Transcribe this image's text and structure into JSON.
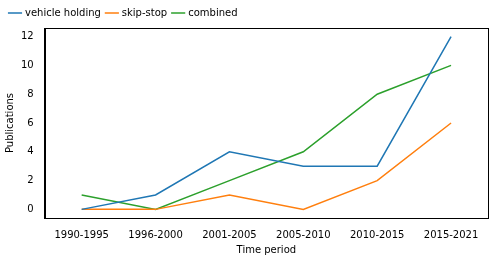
{
  "chart_data": {
    "type": "line",
    "x_label": "Time period",
    "y_label": "Publications",
    "categories": [
      "1990-1995",
      "1996-2000",
      "2001-2005",
      "2005-2010",
      "2010-2015",
      "2015-2021"
    ],
    "series": [
      {
        "name": "vehicle holding",
        "color": "#1f77b4",
        "values": [
          0,
          1,
          4,
          3,
          3,
          12
        ]
      },
      {
        "name": "skip-stop",
        "color": "#ff7f0e",
        "values": [
          0,
          0,
          1,
          0,
          2,
          6
        ]
      },
      {
        "name": "combined",
        "color": "#2ca02c",
        "values": [
          1,
          0,
          2,
          4,
          8,
          10
        ]
      }
    ],
    "ylim": [
      -0.6,
      12.6
    ],
    "yticks": [
      0,
      2,
      4,
      6,
      8,
      10,
      12
    ],
    "grid": false,
    "legend": "upper left"
  }
}
